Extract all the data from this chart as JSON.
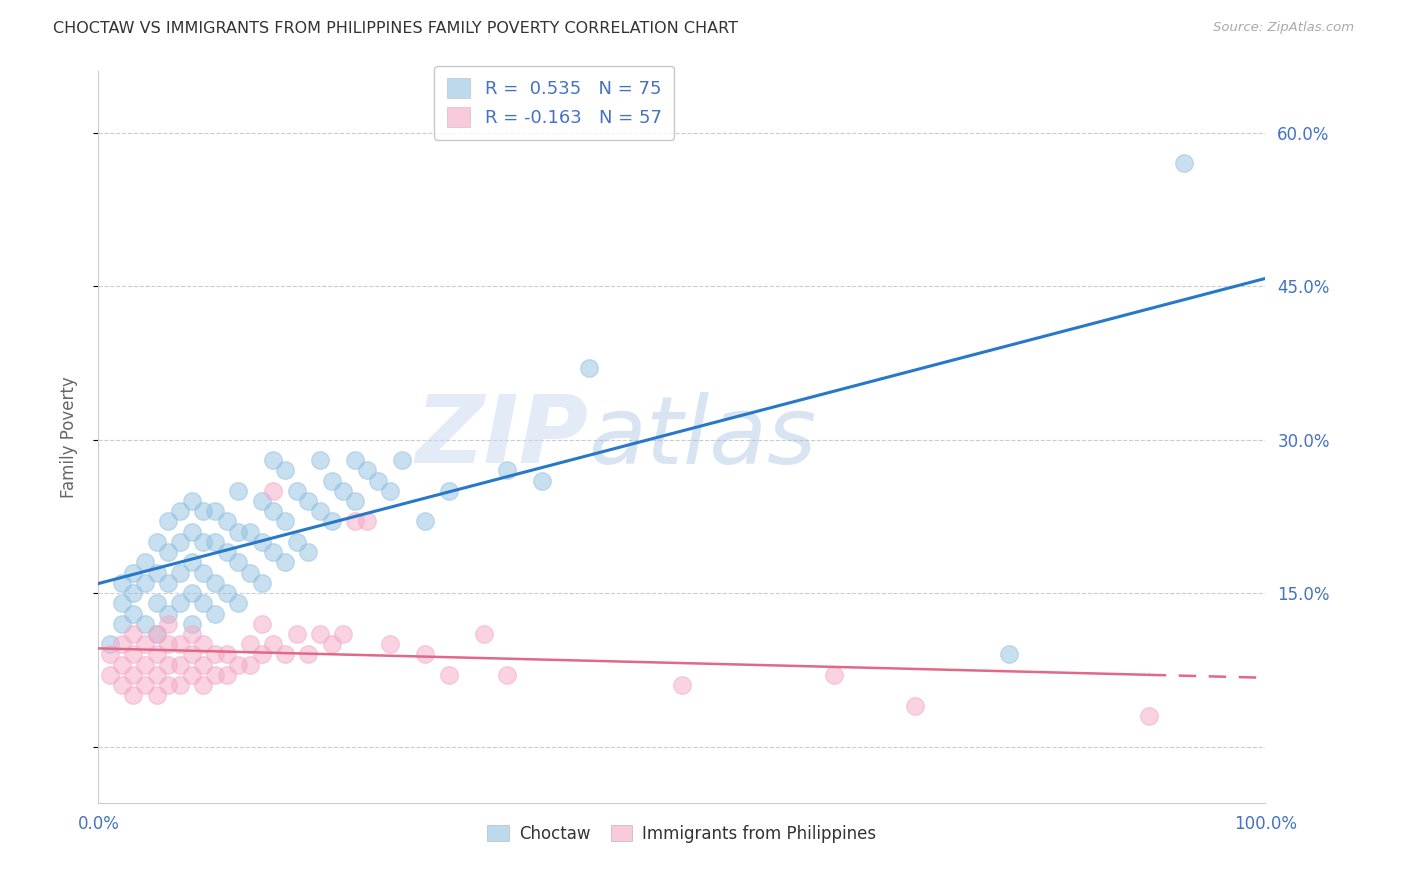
{
  "title": "CHOCTAW VS IMMIGRANTS FROM PHILIPPINES FAMILY POVERTY CORRELATION CHART",
  "source": "Source: ZipAtlas.com",
  "ylabel": "Family Poverty",
  "choctaw_color": "#92c0e0",
  "philippines_color": "#f4a8c4",
  "trendline_choctaw_color": "#2878c8",
  "trendline_philippines_color": "#e06888",
  "background_color": "#ffffff",
  "grid_color": "#cccccc",
  "tick_color": "#4472c4",
  "legend_text_color": "#4472c4",
  "watermark_text": "ZIPatlas",
  "watermark_color": "#c8d8f0",
  "xlim": [
    0.0,
    1.0
  ],
  "ylim": [
    -0.055,
    0.66
  ],
  "ytick_vals": [
    0.0,
    0.15,
    0.3,
    0.45,
    0.6
  ],
  "ytick_labels": [
    "",
    "15.0%",
    "30.0%",
    "45.0%",
    "60.0%"
  ],
  "xtick_vals": [
    0.0,
    1.0
  ],
  "xtick_labels": [
    "0.0%",
    "100.0%"
  ],
  "legend_label1": "R =  0.535   N = 75",
  "legend_label2": "R = -0.163   N = 57",
  "bottom_legend_label1": "Choctaw",
  "bottom_legend_label2": "Immigrants from Philippines",
  "choctaw_scatter_x": [
    0.01,
    0.02,
    0.02,
    0.02,
    0.03,
    0.03,
    0.03,
    0.04,
    0.04,
    0.04,
    0.05,
    0.05,
    0.05,
    0.05,
    0.06,
    0.06,
    0.06,
    0.06,
    0.07,
    0.07,
    0.07,
    0.07,
    0.08,
    0.08,
    0.08,
    0.08,
    0.08,
    0.09,
    0.09,
    0.09,
    0.09,
    0.1,
    0.1,
    0.1,
    0.1,
    0.11,
    0.11,
    0.11,
    0.12,
    0.12,
    0.12,
    0.12,
    0.13,
    0.13,
    0.14,
    0.14,
    0.14,
    0.15,
    0.15,
    0.15,
    0.16,
    0.16,
    0.16,
    0.17,
    0.17,
    0.18,
    0.18,
    0.19,
    0.19,
    0.2,
    0.2,
    0.21,
    0.22,
    0.22,
    0.23,
    0.24,
    0.25,
    0.26,
    0.28,
    0.3,
    0.35,
    0.38,
    0.42,
    0.78,
    0.93
  ],
  "choctaw_scatter_y": [
    0.1,
    0.12,
    0.14,
    0.16,
    0.13,
    0.15,
    0.17,
    0.12,
    0.16,
    0.18,
    0.11,
    0.14,
    0.17,
    0.2,
    0.13,
    0.16,
    0.19,
    0.22,
    0.14,
    0.17,
    0.2,
    0.23,
    0.12,
    0.15,
    0.18,
    0.21,
    0.24,
    0.14,
    0.17,
    0.2,
    0.23,
    0.13,
    0.16,
    0.2,
    0.23,
    0.15,
    0.19,
    0.22,
    0.14,
    0.18,
    0.21,
    0.25,
    0.17,
    0.21,
    0.16,
    0.2,
    0.24,
    0.19,
    0.23,
    0.28,
    0.18,
    0.22,
    0.27,
    0.2,
    0.25,
    0.19,
    0.24,
    0.23,
    0.28,
    0.22,
    0.26,
    0.25,
    0.24,
    0.28,
    0.27,
    0.26,
    0.25,
    0.28,
    0.22,
    0.25,
    0.27,
    0.26,
    0.37,
    0.09,
    0.57
  ],
  "philippines_scatter_x": [
    0.01,
    0.01,
    0.02,
    0.02,
    0.02,
    0.03,
    0.03,
    0.03,
    0.03,
    0.04,
    0.04,
    0.04,
    0.05,
    0.05,
    0.05,
    0.05,
    0.06,
    0.06,
    0.06,
    0.06,
    0.07,
    0.07,
    0.07,
    0.08,
    0.08,
    0.08,
    0.09,
    0.09,
    0.09,
    0.1,
    0.1,
    0.11,
    0.11,
    0.12,
    0.13,
    0.13,
    0.14,
    0.14,
    0.15,
    0.15,
    0.16,
    0.17,
    0.18,
    0.19,
    0.2,
    0.21,
    0.22,
    0.23,
    0.25,
    0.28,
    0.3,
    0.33,
    0.35,
    0.5,
    0.63,
    0.7,
    0.9
  ],
  "philippines_scatter_y": [
    0.07,
    0.09,
    0.06,
    0.08,
    0.1,
    0.07,
    0.09,
    0.05,
    0.11,
    0.06,
    0.08,
    0.1,
    0.05,
    0.07,
    0.09,
    0.11,
    0.06,
    0.08,
    0.1,
    0.12,
    0.06,
    0.08,
    0.1,
    0.07,
    0.09,
    0.11,
    0.06,
    0.08,
    0.1,
    0.07,
    0.09,
    0.07,
    0.09,
    0.08,
    0.08,
    0.1,
    0.09,
    0.12,
    0.1,
    0.25,
    0.09,
    0.11,
    0.09,
    0.11,
    0.1,
    0.11,
    0.22,
    0.22,
    0.1,
    0.09,
    0.07,
    0.11,
    0.07,
    0.06,
    0.07,
    0.04,
    0.03
  ]
}
